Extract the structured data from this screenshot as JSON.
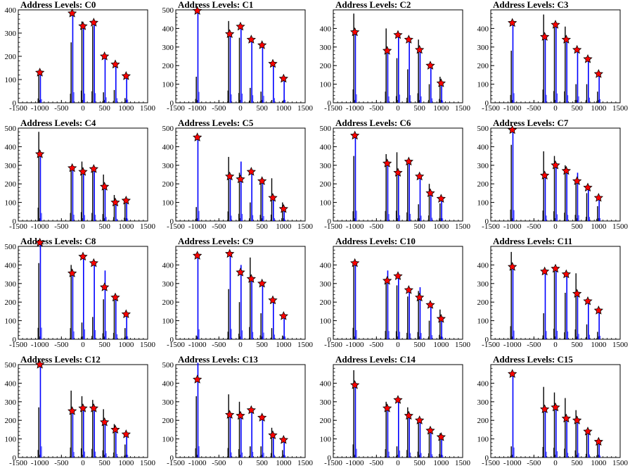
{
  "chart_data": [
    {
      "type": "bar",
      "title": "Address Levels: C0",
      "xlim": [
        -1500,
        1500
      ],
      "ylim": [
        0,
        400
      ],
      "yticks": [
        0,
        100,
        200,
        300,
        400
      ],
      "x": [
        -1000,
        -250,
        0,
        250,
        500,
        750,
        1000
      ],
      "blue_peaks": [
        130,
        380,
        330,
        345,
        195,
        165,
        115
      ],
      "black_peaks": [
        125,
        260,
        350,
        330,
        45,
        55,
        20
      ],
      "markers": [
        130,
        385,
        330,
        345,
        200,
        165,
        115
      ]
    },
    {
      "type": "bar",
      "title": "Address Levels: C1",
      "xlim": [
        -1500,
        1500
      ],
      "ylim": [
        0,
        500
      ],
      "yticks": [
        0,
        100,
        200,
        300,
        400,
        500
      ],
      "x": [
        -1000,
        -250,
        0,
        250,
        500,
        750,
        1000
      ],
      "blue_peaks": [
        490,
        375,
        410,
        340,
        310,
        210,
        130
      ],
      "black_peaks": [
        140,
        440,
        350,
        80,
        60,
        15,
        10
      ],
      "markers": [
        495,
        370,
        410,
        340,
        310,
        210,
        130
      ]
    },
    {
      "type": "bar",
      "title": "Address Levels: C2",
      "xlim": [
        -1500,
        1500
      ],
      "ylim": [
        0,
        500
      ],
      "yticks": [
        0,
        100,
        200,
        300,
        400
      ],
      "x": [
        -1000,
        -250,
        0,
        250,
        500,
        750,
        1000
      ],
      "blue_peaks": [
        380,
        285,
        365,
        340,
        290,
        200,
        105
      ],
      "black_peaks": [
        480,
        400,
        240,
        180,
        340,
        100,
        140
      ],
      "markers": [
        380,
        280,
        365,
        340,
        285,
        200,
        105
      ]
    },
    {
      "type": "bar",
      "title": "Address Levels: C3",
      "xlim": [
        -1500,
        1500
      ],
      "ylim": [
        0,
        500
      ],
      "yticks": [
        0,
        100,
        200,
        300,
        400
      ],
      "x": [
        -1000,
        -250,
        0,
        250,
        500,
        750,
        1000
      ],
      "blue_peaks": [
        430,
        355,
        420,
        340,
        290,
        230,
        160
      ],
      "black_peaks": [
        280,
        475,
        420,
        410,
        100,
        100,
        60
      ],
      "markers": [
        430,
        355,
        420,
        340,
        285,
        235,
        155
      ]
    },
    {
      "type": "bar",
      "title": "Address Levels: C4",
      "xlim": [
        -1500,
        1500
      ],
      "ylim": [
        0,
        500
      ],
      "yticks": [
        0,
        100,
        200,
        300,
        400,
        500
      ],
      "x": [
        -1000,
        -250,
        0,
        250,
        500,
        750,
        1000
      ],
      "blue_peaks": [
        360,
        285,
        270,
        280,
        180,
        100,
        110
      ],
      "black_peaks": [
        480,
        290,
        320,
        290,
        250,
        140,
        120
      ],
      "markers": [
        360,
        285,
        265,
        280,
        185,
        100,
        110
      ]
    },
    {
      "type": "bar",
      "title": "Address Levels: C5",
      "xlim": [
        -1500,
        1500
      ],
      "ylim": [
        0,
        500
      ],
      "yticks": [
        0,
        100,
        200,
        300,
        400,
        500
      ],
      "x": [
        -1000,
        -250,
        0,
        250,
        500,
        750,
        1000
      ],
      "blue_peaks": [
        455,
        240,
        320,
        265,
        220,
        130,
        65
      ],
      "black_peaks": [
        75,
        345,
        260,
        100,
        220,
        230,
        100
      ],
      "markers": [
        450,
        240,
        225,
        265,
        215,
        125,
        65
      ]
    },
    {
      "type": "bar",
      "title": "Address Levels: C6",
      "xlim": [
        -1500,
        1500
      ],
      "ylim": [
        0,
        500
      ],
      "yticks": [
        0,
        100,
        200,
        300,
        400,
        500
      ],
      "x": [
        -1000,
        -250,
        0,
        250,
        500,
        750,
        1000
      ],
      "blue_peaks": [
        460,
        310,
        260,
        320,
        240,
        145,
        120
      ],
      "black_peaks": [
        350,
        360,
        370,
        310,
        90,
        200,
        95
      ],
      "markers": [
        460,
        310,
        260,
        320,
        240,
        150,
        120
      ]
    },
    {
      "type": "bar",
      "title": "Address Levels: C7",
      "xlim": [
        -1500,
        1500
      ],
      "ylim": [
        0,
        500
      ],
      "yticks": [
        0,
        100,
        200,
        300,
        400,
        500
      ],
      "x": [
        -1000,
        -250,
        0,
        250,
        500,
        750,
        1000
      ],
      "blue_peaks": [
        490,
        245,
        300,
        275,
        260,
        180,
        125
      ],
      "black_peaks": [
        410,
        375,
        350,
        300,
        220,
        150,
        80
      ],
      "markers": [
        490,
        245,
        300,
        270,
        215,
        180,
        125
      ]
    },
    {
      "type": "bar",
      "title": "Address Levels: C8",
      "xlim": [
        -1500,
        1500
      ],
      "ylim": [
        0,
        500
      ],
      "yticks": [
        0,
        100,
        200,
        300,
        400,
        500
      ],
      "x": [
        -1000,
        -250,
        0,
        250,
        500,
        750,
        1000
      ],
      "blue_peaks": [
        520,
        355,
        445,
        410,
        370,
        225,
        135
      ],
      "black_peaks": [
        410,
        400,
        90,
        120,
        215,
        230,
        60
      ],
      "markers": [
        520,
        355,
        445,
        410,
        280,
        225,
        135
      ]
    },
    {
      "type": "bar",
      "title": "Address Levels: C9",
      "xlim": [
        -1500,
        1500
      ],
      "ylim": [
        0,
        500
      ],
      "yticks": [
        0,
        100,
        200,
        300,
        400
      ],
      "x": [
        -1000,
        -250,
        0,
        250,
        500,
        750,
        1000
      ],
      "blue_peaks": [
        450,
        460,
        400,
        330,
        300,
        210,
        125
      ],
      "black_peaks": [
        20,
        270,
        200,
        440,
        140,
        60,
        20
      ],
      "markers": [
        450,
        460,
        360,
        325,
        300,
        210,
        125
      ]
    },
    {
      "type": "bar",
      "title": "Address Levels: C10",
      "xlim": [
        -1500,
        1500
      ],
      "ylim": [
        0,
        500
      ],
      "yticks": [
        0,
        100,
        200,
        300,
        400
      ],
      "x": [
        -1000,
        -250,
        0,
        250,
        500,
        750,
        1000
      ],
      "blue_peaks": [
        410,
        370,
        340,
        265,
        280,
        185,
        110
      ],
      "black_peaks": [
        410,
        300,
        290,
        230,
        260,
        100,
        160
      ],
      "markers": [
        410,
        315,
        340,
        265,
        225,
        185,
        110
      ]
    },
    {
      "type": "bar",
      "title": "Address Levels: C11",
      "xlim": [
        -1500,
        1500
      ],
      "ylim": [
        0,
        500
      ],
      "yticks": [
        0,
        100,
        200,
        300,
        400
      ],
      "x": [
        -1000,
        -250,
        0,
        250,
        500,
        750,
        1000
      ],
      "blue_peaks": [
        390,
        370,
        380,
        350,
        240,
        200,
        155
      ],
      "black_peaks": [
        470,
        140,
        380,
        250,
        355,
        80,
        40
      ],
      "markers": [
        390,
        365,
        380,
        350,
        245,
        205,
        155
      ]
    },
    {
      "type": "bar",
      "title": "Address Levels: C12",
      "xlim": [
        -1500,
        1500
      ],
      "ylim": [
        0,
        500
      ],
      "yticks": [
        0,
        100,
        200,
        300,
        400,
        500
      ],
      "x": [
        -1000,
        -250,
        0,
        250,
        500,
        750,
        1000
      ],
      "blue_peaks": [
        500,
        250,
        270,
        265,
        190,
        160,
        125
      ],
      "black_peaks": [
        270,
        360,
        330,
        310,
        260,
        180,
        70
      ],
      "markers": [
        500,
        250,
        265,
        265,
        190,
        150,
        125
      ]
    },
    {
      "type": "bar",
      "title": "Address Levels: C13",
      "xlim": [
        -1500,
        1500
      ],
      "ylim": [
        0,
        500
      ],
      "yticks": [
        0,
        100,
        200,
        300,
        400,
        500
      ],
      "x": [
        -1000,
        -250,
        0,
        250,
        500,
        750,
        1000
      ],
      "blue_peaks": [
        510,
        230,
        225,
        255,
        215,
        120,
        95
      ],
      "black_peaks": [
        330,
        340,
        300,
        60,
        60,
        160,
        40
      ],
      "markers": [
        420,
        230,
        225,
        255,
        215,
        120,
        95
      ]
    },
    {
      "type": "bar",
      "title": "Address Levels: C14",
      "xlim": [
        -1500,
        1500
      ],
      "ylim": [
        0,
        500
      ],
      "yticks": [
        0,
        100,
        200,
        300,
        400
      ],
      "x": [
        -1000,
        -250,
        0,
        250,
        500,
        750,
        1000
      ],
      "blue_peaks": [
        390,
        265,
        310,
        220,
        200,
        145,
        110
      ],
      "black_peaks": [
        470,
        300,
        60,
        270,
        210,
        150,
        130
      ],
      "markers": [
        390,
        265,
        310,
        225,
        200,
        145,
        110
      ]
    },
    {
      "type": "bar",
      "title": "Address Levels: C15",
      "xlim": [
        -1500,
        1500
      ],
      "ylim": [
        0,
        500
      ],
      "yticks": [
        0,
        100,
        200,
        300,
        400
      ],
      "x": [
        -1000,
        -250,
        0,
        250,
        500,
        750,
        1000
      ],
      "blue_peaks": [
        450,
        260,
        280,
        210,
        200,
        140,
        85
      ],
      "black_peaks": [
        60,
        380,
        350,
        320,
        255,
        130,
        75
      ],
      "markers": [
        450,
        260,
        270,
        210,
        200,
        140,
        85
      ]
    }
  ],
  "style": {
    "blue_line": "#0000ff",
    "black_line": "#000000",
    "marker_fill": "#ff0000",
    "marker_stroke": "#000000"
  }
}
